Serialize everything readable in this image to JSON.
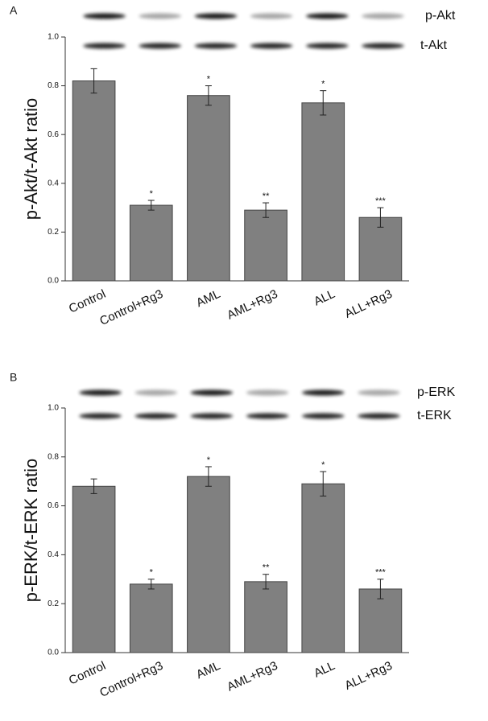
{
  "chart_data": [
    {
      "type": "bar",
      "panel_label": "A",
      "y_label": "p-Akt/t-Akt ratio",
      "blot_labels": [
        "p-Akt",
        "t-Akt"
      ],
      "categories": [
        "Control",
        "Control+Rg3",
        "AML",
        "AML+Rg3",
        "ALL",
        "ALL+Rg3"
      ],
      "values": [
        0.82,
        0.31,
        0.76,
        0.29,
        0.73,
        0.26
      ],
      "errors": [
        0.05,
        0.02,
        0.04,
        0.03,
        0.05,
        0.04
      ],
      "significance": [
        null,
        "*",
        "*",
        "**",
        "*",
        "***"
      ],
      "color": "#808080",
      "ylim": [
        0,
        1.0
      ],
      "yticks": [
        {
          "value": 0,
          "label": "0.0"
        },
        {
          "value": 0.2,
          "label": "0.2"
        },
        {
          "value": 0.4,
          "label": "0.4"
        },
        {
          "value": 0.6,
          "label": "0.6"
        },
        {
          "value": 0.8,
          "label": "0.8"
        },
        {
          "value": 1.0,
          "label": "1.0"
        }
      ]
    },
    {
      "type": "bar",
      "panel_label": "B",
      "y_label": "p-ERK/t-ERK ratio",
      "blot_labels": [
        "p-ERK",
        "t-ERK"
      ],
      "categories": [
        "Control",
        "Control+Rg3",
        "AML",
        "AML+Rg3",
        "ALL",
        "ALL+Rg3"
      ],
      "values": [
        0.68,
        0.28,
        0.72,
        0.29,
        0.69,
        0.26
      ],
      "errors": [
        0.03,
        0.02,
        0.04,
        0.03,
        0.05,
        0.04
      ],
      "significance": [
        null,
        "*",
        "*",
        "**",
        "*",
        "***"
      ],
      "color": "#808080",
      "ylim": [
        0,
        1.0
      ],
      "yticks": [
        {
          "value": 0,
          "label": "0.0"
        },
        {
          "value": 0.2,
          "label": "0.2"
        },
        {
          "value": 0.4,
          "label": "0.4"
        },
        {
          "value": 0.6,
          "label": "0.6"
        },
        {
          "value": 0.8,
          "label": "0.8"
        },
        {
          "value": 1.0,
          "label": "1.0"
        }
      ]
    }
  ]
}
